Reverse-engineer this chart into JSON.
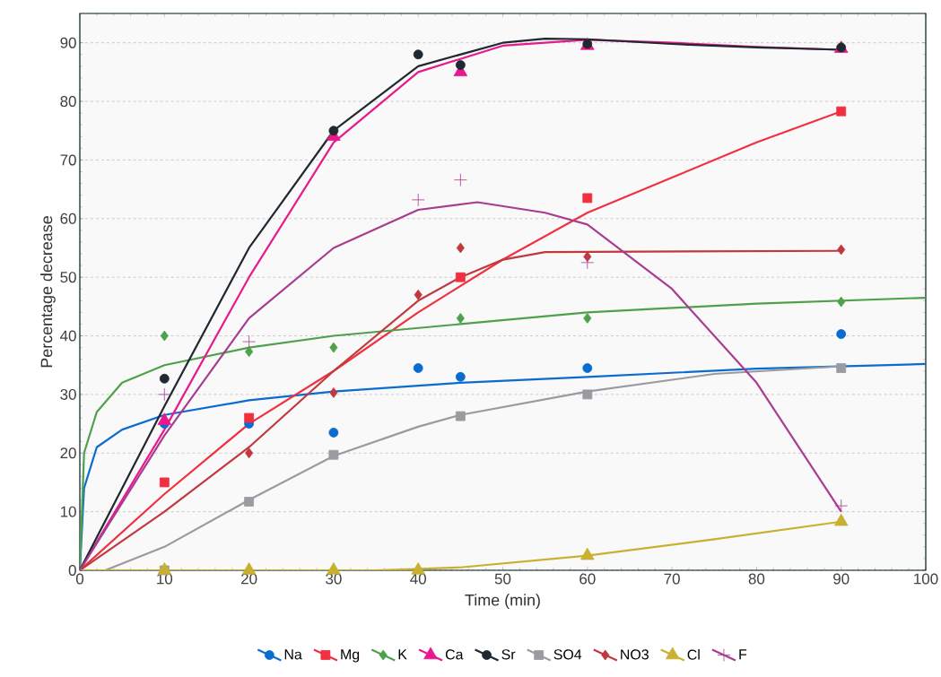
{
  "chart_data": {
    "type": "scatter",
    "xlabel": "Time (min)",
    "ylabel": "Percentage decrease",
    "xlim": [
      0,
      100
    ],
    "ylim": [
      0,
      95
    ],
    "xticks": [
      0,
      10,
      20,
      30,
      40,
      50,
      60,
      70,
      80,
      90,
      100
    ],
    "yticks": [
      0,
      10,
      20,
      30,
      40,
      50,
      60,
      70,
      80,
      90
    ],
    "grid": "y",
    "legend": "bottom",
    "series": [
      {
        "type": "line",
        "color": "#0a6ccf",
        "marker": "none",
        "x": [
          0,
          0.5,
          2,
          5,
          10,
          20,
          30,
          45,
          60,
          80,
          100
        ],
        "values": [
          0,
          14,
          21,
          24,
          26.5,
          29,
          30.5,
          32,
          33,
          34.4,
          35.2
        ]
      },
      {
        "type": "line",
        "color": "#f03040",
        "marker": "none",
        "x": [
          0,
          10,
          20,
          30,
          40,
          50,
          60,
          70,
          80,
          90
        ],
        "values": [
          0,
          13,
          25,
          34,
          44,
          53,
          61,
          67,
          73,
          78.3
        ]
      },
      {
        "type": "line",
        "color": "#4ea04a",
        "marker": "none",
        "x": [
          0,
          0.5,
          2,
          5,
          10,
          20,
          30,
          45,
          60,
          80,
          100
        ],
        "values": [
          0,
          20,
          27,
          32,
          35,
          38,
          40,
          42,
          44,
          45.5,
          46.5
        ]
      },
      {
        "type": "line",
        "color": "#e8198c",
        "marker": "none",
        "x": [
          0,
          10,
          20,
          30,
          40,
          50,
          60,
          70,
          80,
          90
        ],
        "values": [
          0,
          24,
          50,
          73,
          85,
          89.5,
          90.5,
          90,
          89.3,
          88.8
        ]
      },
      {
        "type": "line",
        "color": "#202830",
        "marker": "none",
        "x": [
          0,
          10,
          20,
          30,
          40,
          50,
          55,
          60,
          70,
          80,
          90
        ],
        "values": [
          0,
          28,
          55,
          75,
          86,
          90,
          90.7,
          90.6,
          89.8,
          89.2,
          88.8
        ]
      },
      {
        "type": "line",
        "color": "#9a9aa0",
        "marker": "none",
        "x": [
          3,
          10,
          20,
          30,
          40,
          45,
          60,
          75,
          90
        ],
        "values": [
          0,
          4,
          12,
          19.5,
          24.5,
          26.5,
          30.5,
          33.5,
          34.8
        ]
      },
      {
        "type": "line",
        "color": "#c0393f",
        "marker": "none",
        "x": [
          0,
          10,
          20,
          30,
          40,
          45,
          50,
          55,
          90
        ],
        "values": [
          0,
          10,
          21,
          34,
          46,
          50,
          53,
          54.3,
          54.5
        ]
      },
      {
        "type": "line",
        "color": "#c8b030",
        "marker": "none",
        "x": [
          0,
          35,
          45,
          60,
          75,
          90
        ],
        "values": [
          0,
          0,
          0.5,
          2.5,
          5.3,
          8.3
        ]
      },
      {
        "type": "line",
        "color": "#a83c90",
        "marker": "none",
        "x": [
          0,
          10,
          20,
          30,
          40,
          47,
          55,
          60,
          70,
          80,
          90
        ],
        "values": [
          0,
          23,
          43,
          55,
          61.5,
          62.8,
          61,
          59,
          48,
          32,
          10
        ]
      },
      {
        "name": "Na",
        "color": "#0a6ccf",
        "marker": "circle",
        "x": [
          10,
          20,
          30,
          40,
          45,
          60,
          90
        ],
        "values": [
          25,
          25,
          23.5,
          34.5,
          33,
          34.5,
          40.3
        ]
      },
      {
        "name": "Mg",
        "color": "#f03040",
        "marker": "square",
        "x": [
          10,
          20,
          45,
          60,
          90
        ],
        "values": [
          15,
          26,
          50,
          63.5,
          78.3
        ]
      },
      {
        "name": "K",
        "color": "#4ea04a",
        "marker": "diamond",
        "x": [
          10,
          20,
          30,
          45,
          60,
          90
        ],
        "values": [
          40,
          37.3,
          38,
          43,
          43,
          45.8
        ]
      },
      {
        "name": "Ca",
        "color": "#e8198c",
        "marker": "triangle",
        "x": [
          10,
          30,
          45,
          60,
          90
        ],
        "values": [
          25.5,
          74,
          85,
          89.5,
          89
        ]
      },
      {
        "name": "Sr",
        "color": "#202830",
        "marker": "circle",
        "x": [
          10,
          30,
          40,
          45,
          60,
          90
        ],
        "values": [
          32.7,
          75,
          88,
          86.2,
          89.8,
          89.2
        ]
      },
      {
        "name": "SO4",
        "color": "#9a9aa0",
        "marker": "square",
        "x": [
          10,
          20,
          30,
          45,
          60,
          90
        ],
        "values": [
          0,
          11.7,
          19.7,
          26.3,
          30,
          34.5
        ]
      },
      {
        "name": "NO3",
        "color": "#c0393f",
        "marker": "diamond",
        "x": [
          20,
          30,
          40,
          45,
          60,
          90
        ],
        "values": [
          20,
          30.3,
          47,
          55,
          53.5,
          54.7
        ]
      },
      {
        "name": "Cl",
        "color": "#c8b030",
        "marker": "triangle",
        "x": [
          10,
          20,
          30,
          40,
          60,
          90
        ],
        "values": [
          0,
          0,
          0,
          0,
          2.5,
          8.3
        ]
      },
      {
        "name": "F",
        "color": "#a83c90",
        "marker": "cross",
        "x": [
          10,
          20,
          40,
          45,
          60,
          90
        ],
        "values": [
          30,
          39,
          63.2,
          66.6,
          52.5,
          11
        ]
      }
    ]
  }
}
